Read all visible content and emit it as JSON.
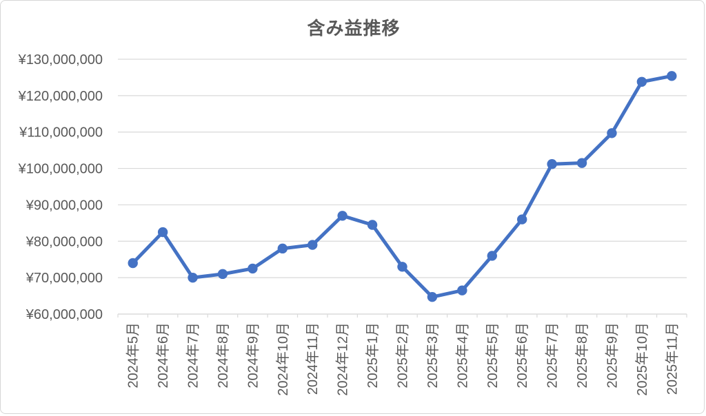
{
  "chart_data": {
    "type": "line",
    "title": "含み益推移",
    "categories": [
      "2024年5月",
      "2024年6月",
      "2024年7月",
      "2024年8月",
      "2024年9月",
      "2024年10月",
      "2024年11月",
      "2024年12月",
      "2025年1月",
      "2025年2月",
      "2025年3月",
      "2025年4月",
      "2025年5月",
      "2025年6月",
      "2025年7月",
      "2025年8月",
      "2025年9月",
      "2025年10月",
      "2025年11月"
    ],
    "values": [
      74000000,
      82500000,
      70000000,
      71000000,
      72500000,
      78000000,
      79000000,
      87000000,
      84500000,
      73000000,
      64700000,
      66500000,
      76000000,
      86000000,
      101200000,
      101500000,
      109700000,
      123800000,
      125400000
    ],
    "ylim": [
      60000000,
      130000000
    ],
    "yticks": [
      {
        "value": 60000000,
        "label": "¥60,000,000"
      },
      {
        "value": 70000000,
        "label": "¥70,000,000"
      },
      {
        "value": 80000000,
        "label": "¥80,000,000"
      },
      {
        "value": 90000000,
        "label": "¥90,000,000"
      },
      {
        "value": 100000000,
        "label": "¥100,000,000"
      },
      {
        "value": 110000000,
        "label": "¥110,000,000"
      },
      {
        "value": 120000000,
        "label": "¥120,000,000"
      },
      {
        "value": 130000000,
        "label": "¥130,000,000"
      }
    ],
    "grid": true,
    "legend": "none",
    "xlabel": "",
    "ylabel": "",
    "line_color": "#4472C4",
    "marker_color": "#4472C4",
    "grid_color": "#D9D9D9",
    "axis_color": "#D9D9D9",
    "text_color": "#595959",
    "background_color": "#FFFFFF",
    "border_color": "#D6D6D6"
  }
}
